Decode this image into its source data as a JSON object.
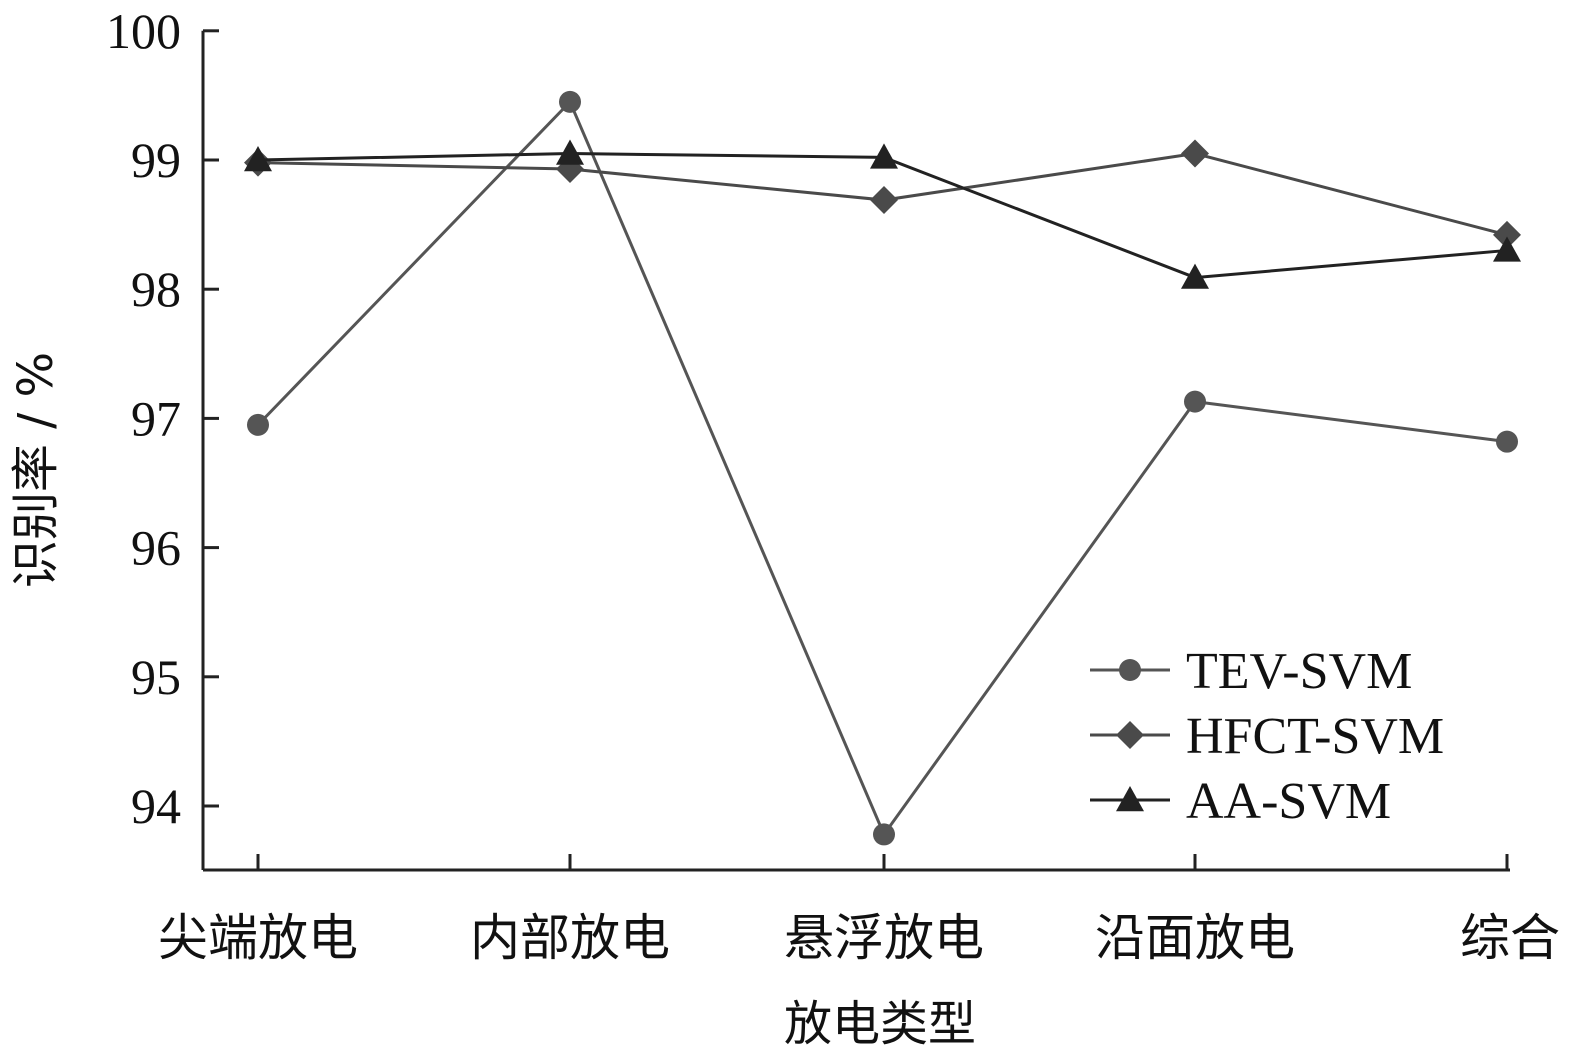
{
  "chart_data": {
    "type": "line",
    "categories": [
      "尖端放电",
      "内部放电",
      "悬浮放电",
      "沿面放电",
      "综合"
    ],
    "series": [
      {
        "name": "TEV-SVM",
        "values": [
          96.95,
          99.45,
          93.78,
          97.13,
          96.82
        ],
        "marker": "circle",
        "color": "#555555"
      },
      {
        "name": "HFCT-SVM",
        "values": [
          98.98,
          98.93,
          98.69,
          99.05,
          98.42
        ],
        "marker": "diamond",
        "color": "#4a4a4a"
      },
      {
        "name": "AA-SVM",
        "values": [
          99.0,
          99.05,
          99.02,
          98.09,
          98.3
        ],
        "marker": "triangle",
        "color": "#222222"
      }
    ],
    "xlabel": "放电类型",
    "ylabel": "识别率 / %",
    "ylim": [
      93.5,
      100
    ],
    "yticks": [
      94,
      95,
      96,
      97,
      98,
      99,
      100
    ],
    "grid": false,
    "legend_position": "bottom-right"
  }
}
